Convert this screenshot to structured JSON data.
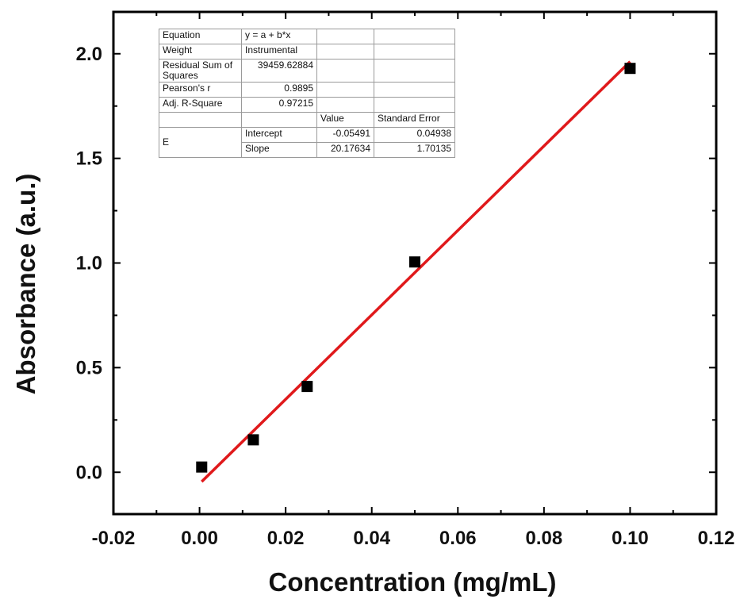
{
  "chart_data": {
    "type": "scatter",
    "xlabel": "Concentration (mg/mL)",
    "ylabel": "Absorbance (a.u.)",
    "xlim": [
      -0.02,
      0.12
    ],
    "ylim": [
      -0.2,
      2.2
    ],
    "x_ticks": [
      "-0.02",
      "0.00",
      "0.02",
      "0.04",
      "0.06",
      "0.08",
      "0.10",
      "0.12"
    ],
    "y_ticks": [
      "0.0",
      "0.5",
      "1.0",
      "1.5",
      "2.0"
    ],
    "grid": false,
    "series": [
      {
        "type": "scatter",
        "marker": "square",
        "color": "#000000",
        "x": [
          0.0005,
          0.0125,
          0.025,
          0.05,
          0.1
        ],
        "y": [
          0.025,
          0.155,
          0.41,
          1.005,
          1.93
        ]
      },
      {
        "type": "line",
        "color": "#e0191b",
        "fit": {
          "intercept": -0.05491,
          "slope": 20.17634
        },
        "x": [
          0.0005,
          0.1
        ],
        "y": [
          -0.0448,
          1.9627
        ]
      }
    ],
    "fit_table": {
      "rows": [
        [
          "Equation",
          "y = a + b*x",
          "",
          ""
        ],
        [
          "Weight",
          "Instrumental",
          "",
          ""
        ],
        [
          "Residual Sum of Squares",
          "39459.62884",
          "",
          ""
        ],
        [
          "Pearson's r",
          "0.9895",
          "",
          ""
        ],
        [
          "Adj. R-Square",
          "0.97215",
          "",
          ""
        ],
        [
          "",
          "",
          "Value",
          "Standard Error"
        ],
        [
          "E",
          "Intercept",
          "-0.05491",
          "0.04938"
        ],
        [
          "",
          "Slope",
          "20.17634",
          "1.70135"
        ]
      ]
    }
  }
}
